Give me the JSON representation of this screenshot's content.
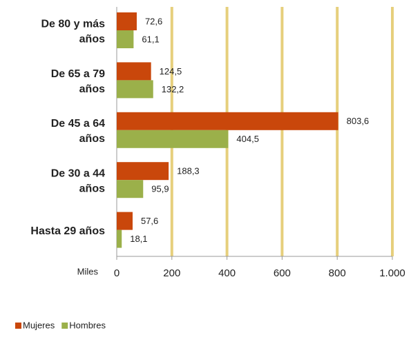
{
  "chart_data": {
    "type": "hbar",
    "categories": [
      [
        "De 80 y más",
        "años"
      ],
      [
        "De 65 a 79",
        "años"
      ],
      [
        "De 45 a 64",
        "años"
      ],
      [
        "De 30 a 44",
        "años"
      ],
      [
        "Hasta 29 años"
      ]
    ],
    "series": [
      {
        "name": "Mujeres",
        "color": "#c9470b",
        "values": [
          72.6,
          124.5,
          803.6,
          188.3,
          57.6
        ],
        "value_labels": [
          "72,6",
          "124,5",
          "803,6",
          "188,3",
          "57,6"
        ]
      },
      {
        "name": "Hombres",
        "color": "#9bb04a",
        "values": [
          61.1,
          132.2,
          404.5,
          95.9,
          18.1
        ],
        "value_labels": [
          "61,1",
          "132,2",
          "404,5",
          "95,9",
          "18,1"
        ]
      }
    ],
    "xlabel": "Miles",
    "xlim": [
      0,
      1000
    ],
    "xticks": [
      0,
      200,
      400,
      600,
      800,
      {
        "value": 1000,
        "label": "1.000"
      }
    ],
    "grid": true,
    "grid_color": "#e6cf7c",
    "legend": "bottom-left"
  }
}
